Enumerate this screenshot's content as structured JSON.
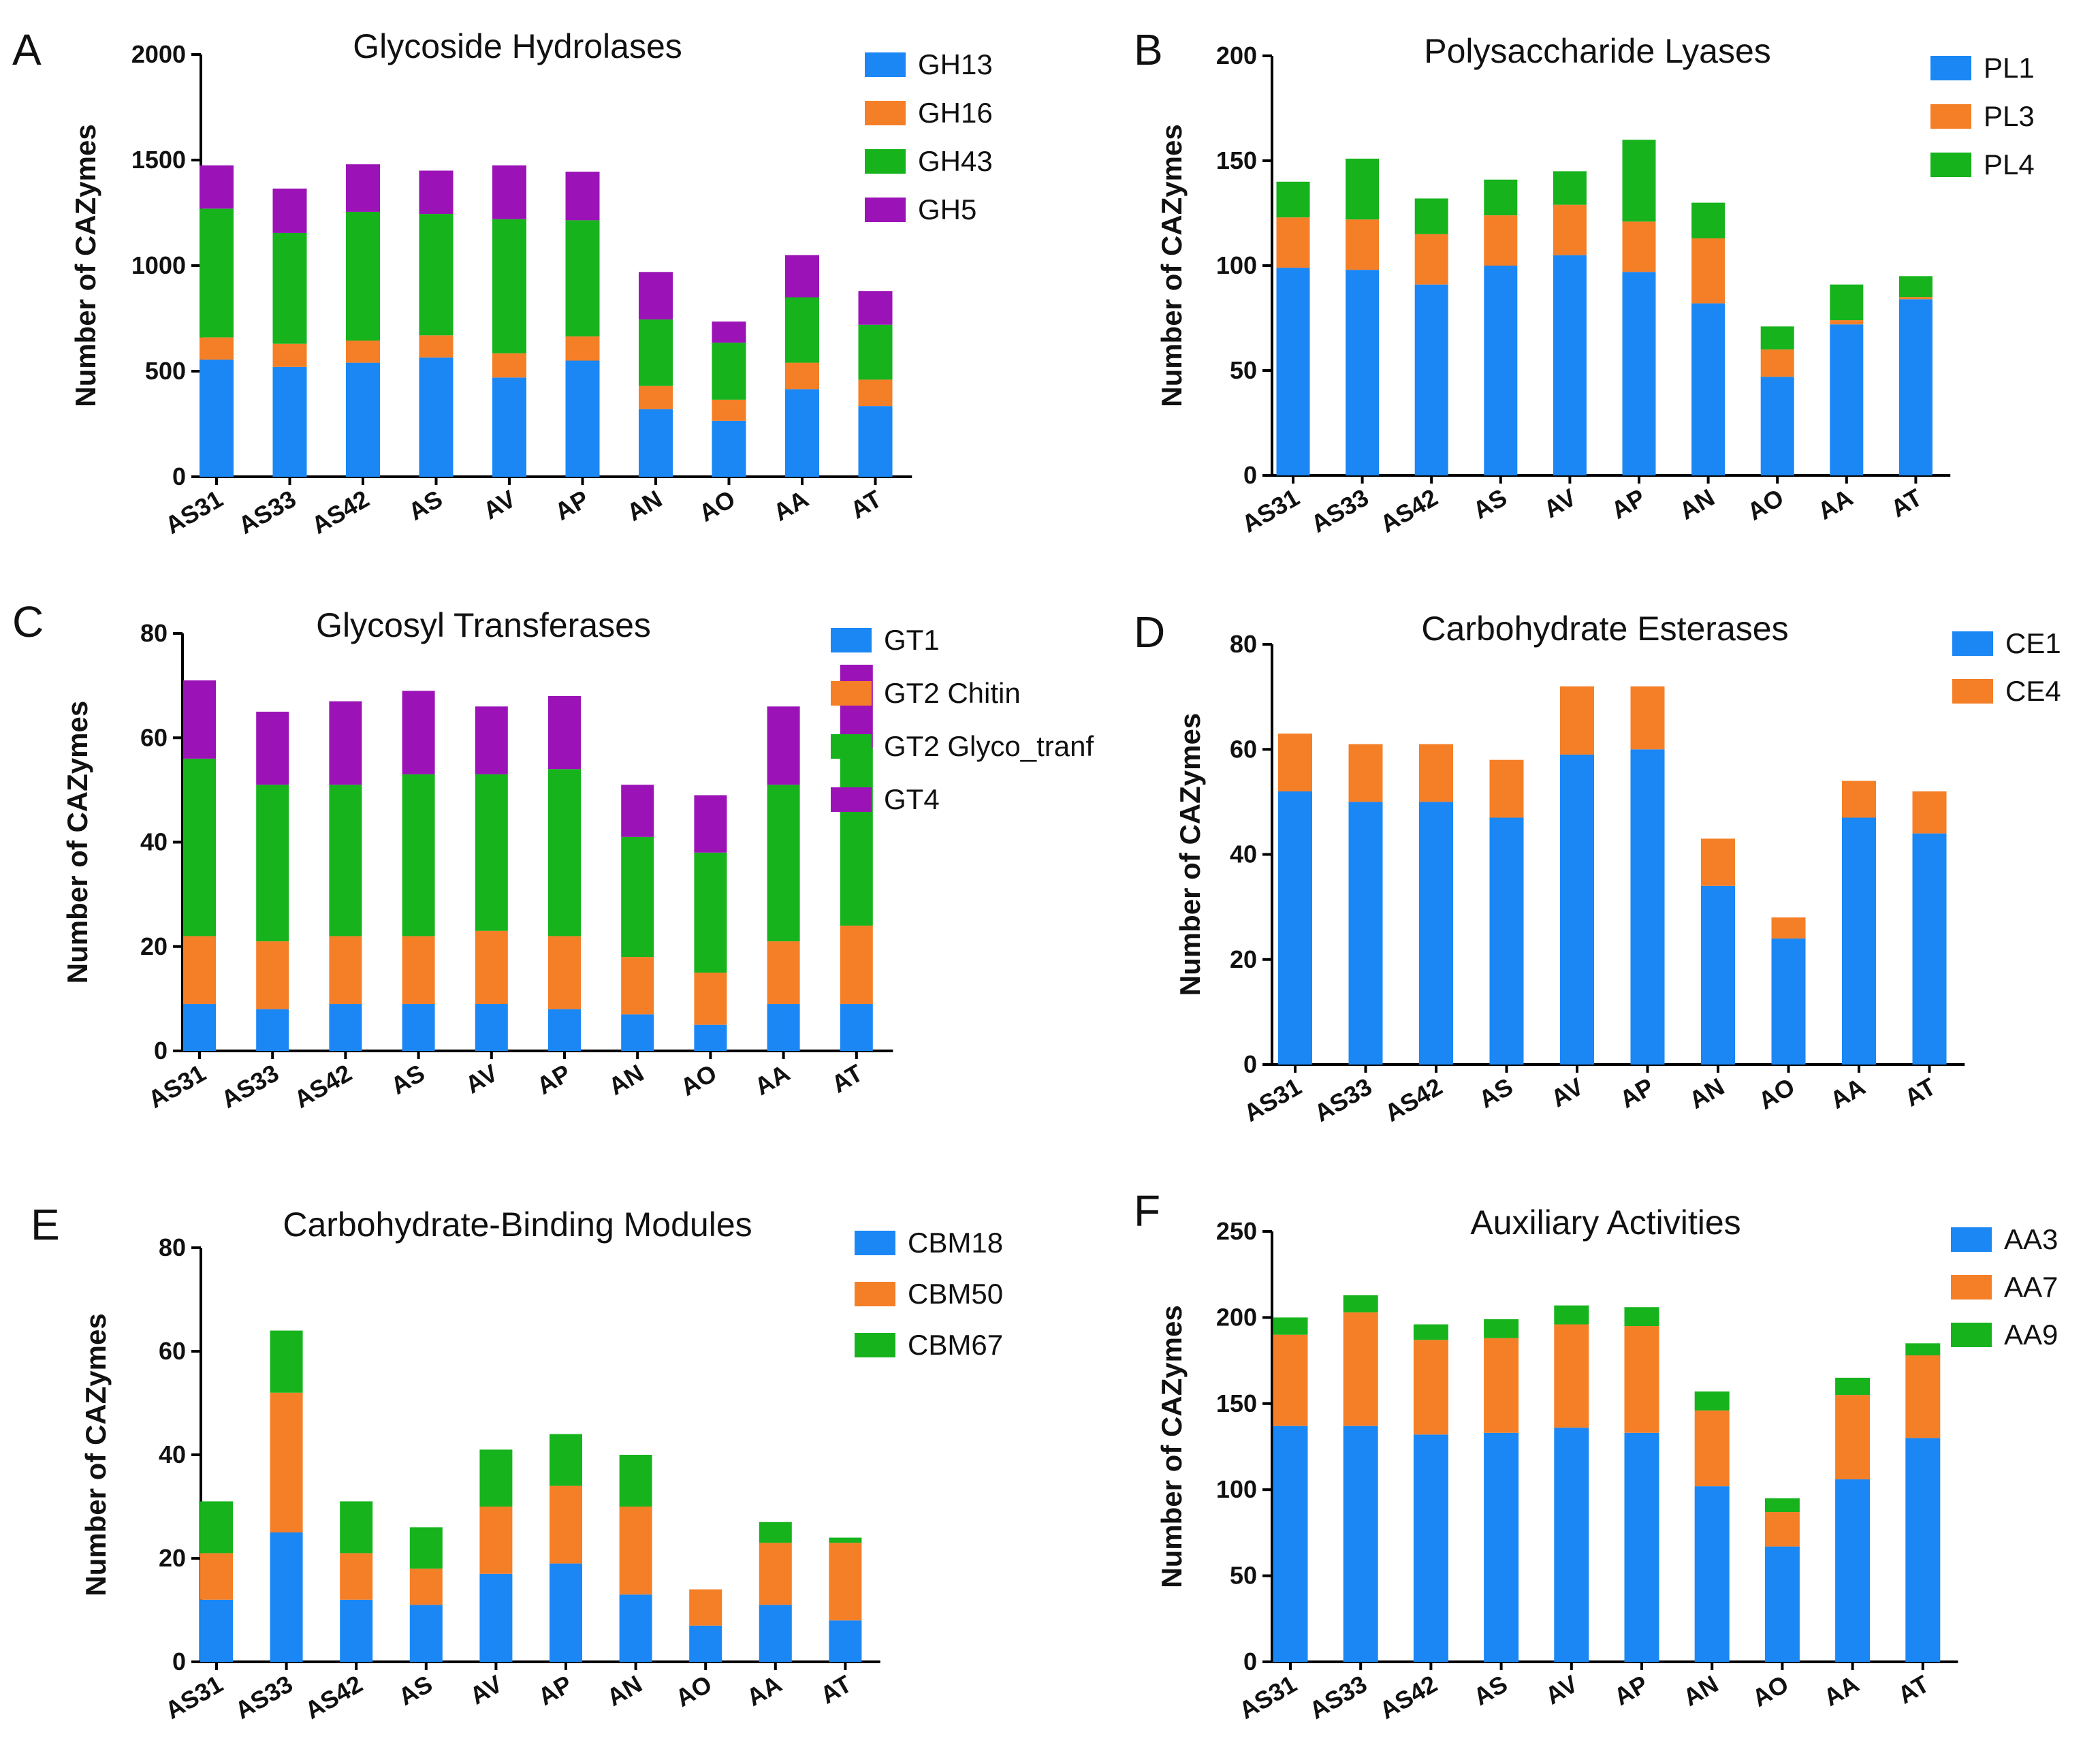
{
  "chart_data": [
    {
      "panel": "A",
      "type": "bar",
      "stacked": true,
      "title": "Glycoside Hydrolases",
      "xlabel": "",
      "ylabel": "Number of CAZymes",
      "ylim": [
        0,
        2000
      ],
      "yticks": [
        0,
        500,
        1000,
        1500,
        2000
      ],
      "legend_position": "right",
      "categories": [
        "AS31",
        "AS33",
        "AS42",
        "AS",
        "AV",
        "AP",
        "AN",
        "AO",
        "AA",
        "AT"
      ],
      "series": [
        {
          "name": "GH13",
          "color": "#1a87f5",
          "values": [
            555,
            520,
            540,
            565,
            470,
            550,
            320,
            265,
            415,
            335
          ]
        },
        {
          "name": "GH16",
          "color": "#f47f27",
          "values": [
            105,
            110,
            105,
            105,
            115,
            115,
            110,
            100,
            125,
            125
          ]
        },
        {
          "name": "GH43",
          "color": "#16b31d",
          "values": [
            610,
            525,
            610,
            575,
            635,
            550,
            315,
            270,
            310,
            260
          ]
        },
        {
          "name": "GH5",
          "color": "#9b13b7",
          "values": [
            205,
            210,
            225,
            205,
            255,
            230,
            225,
            100,
            200,
            160
          ]
        }
      ]
    },
    {
      "panel": "B",
      "type": "bar",
      "stacked": true,
      "title": "Polysaccharide Lyases",
      "xlabel": "",
      "ylabel": "Number of CAZymes",
      "ylim": [
        0,
        200
      ],
      "yticks": [
        0,
        50,
        100,
        150,
        200
      ],
      "legend_position": "right",
      "categories": [
        "AS31",
        "AS33",
        "AS42",
        "AS",
        "AV",
        "AP",
        "AN",
        "AO",
        "AA",
        "AT"
      ],
      "series": [
        {
          "name": "PL1",
          "color": "#1a87f5",
          "values": [
            99,
            98,
            91,
            100,
            105,
            97,
            82,
            47,
            72,
            84
          ]
        },
        {
          "name": "PL3",
          "color": "#f47f27",
          "values": [
            24,
            24,
            24,
            24,
            24,
            24,
            31,
            13,
            2,
            1
          ]
        },
        {
          "name": "PL4",
          "color": "#16b31d",
          "values": [
            17,
            29,
            17,
            17,
            16,
            39,
            17,
            11,
            17,
            10
          ]
        }
      ]
    },
    {
      "panel": "C",
      "type": "bar",
      "stacked": true,
      "title": "Glycosyl Transferases",
      "xlabel": "",
      "ylabel": "Number of CAZymes",
      "ylim": [
        0,
        80
      ],
      "yticks": [
        0,
        20,
        40,
        60,
        80
      ],
      "legend_position": "right",
      "categories": [
        "AS31",
        "AS33",
        "AS42",
        "AS",
        "AV",
        "AP",
        "AN",
        "AO",
        "AA",
        "AT"
      ],
      "series": [
        {
          "name": "GT1",
          "color": "#1a87f5",
          "values": [
            9,
            8,
            9,
            9,
            9,
            8,
            7,
            5,
            9,
            9
          ]
        },
        {
          "name": "GT2 Chitin",
          "color": "#f47f27",
          "values": [
            13,
            13,
            13,
            13,
            14,
            14,
            11,
            10,
            12,
            15
          ]
        },
        {
          "name": "GT2 Glyco_tranf",
          "color": "#16b31d",
          "values": [
            34,
            30,
            29,
            31,
            30,
            32,
            23,
            23,
            30,
            34
          ]
        },
        {
          "name": "GT4",
          "color": "#9b13b7",
          "values": [
            15,
            14,
            16,
            16,
            13,
            14,
            10,
            11,
            15,
            16
          ]
        }
      ]
    },
    {
      "panel": "D",
      "type": "bar",
      "stacked": true,
      "title": "Carbohydrate Esterases",
      "xlabel": "",
      "ylabel": "Number of CAZymes",
      "ylim": [
        0,
        80
      ],
      "yticks": [
        0,
        20,
        40,
        60,
        80
      ],
      "legend_position": "right",
      "categories": [
        "AS31",
        "AS33",
        "AS42",
        "AS",
        "AV",
        "AP",
        "AN",
        "AO",
        "AA",
        "AT"
      ],
      "series": [
        {
          "name": "CE1",
          "color": "#1a87f5",
          "values": [
            52,
            50,
            50,
            47,
            59,
            60,
            34,
            24,
            47,
            44
          ]
        },
        {
          "name": "CE4",
          "color": "#f47f27",
          "values": [
            11,
            11,
            11,
            11,
            13,
            12,
            9,
            4,
            7,
            8
          ]
        }
      ]
    },
    {
      "panel": "E",
      "type": "bar",
      "stacked": true,
      "title": "Carbohydrate-Binding Modules",
      "xlabel": "",
      "ylabel": "Number of CAZymes",
      "ylim": [
        0,
        80
      ],
      "yticks": [
        0,
        20,
        40,
        60,
        80
      ],
      "legend_position": "right",
      "categories": [
        "AS31",
        "AS33",
        "AS42",
        "AS",
        "AV",
        "AP",
        "AN",
        "AO",
        "AA",
        "AT"
      ],
      "series": [
        {
          "name": "CBM18",
          "color": "#1a87f5",
          "values": [
            12,
            25,
            12,
            11,
            17,
            19,
            13,
            7,
            11,
            8
          ]
        },
        {
          "name": "CBM50",
          "color": "#f47f27",
          "values": [
            9,
            27,
            9,
            7,
            13,
            15,
            17,
            7,
            12,
            15
          ]
        },
        {
          "name": "CBM67",
          "color": "#16b31d",
          "values": [
            10,
            12,
            10,
            8,
            11,
            10,
            10,
            0,
            4,
            1
          ]
        }
      ]
    },
    {
      "panel": "F",
      "type": "bar",
      "stacked": true,
      "title": "Auxiliary Activities",
      "xlabel": "",
      "ylabel": "Number of CAZymes",
      "ylim": [
        0,
        250
      ],
      "yticks": [
        0,
        50,
        100,
        150,
        200,
        250
      ],
      "legend_position": "right",
      "categories": [
        "AS31",
        "AS33",
        "AS42",
        "AS",
        "AV",
        "AP",
        "AN",
        "AO",
        "AA",
        "AT"
      ],
      "series": [
        {
          "name": "AA3",
          "color": "#1a87f5",
          "values": [
            137,
            137,
            132,
            133,
            136,
            133,
            102,
            67,
            106,
            130
          ]
        },
        {
          "name": "AA7",
          "color": "#f47f27",
          "values": [
            53,
            66,
            55,
            55,
            60,
            62,
            44,
            20,
            49,
            48
          ]
        },
        {
          "name": "AA9",
          "color": "#16b31d",
          "values": [
            10,
            10,
            9,
            11,
            11,
            11,
            11,
            8,
            10,
            7
          ]
        }
      ]
    }
  ]
}
